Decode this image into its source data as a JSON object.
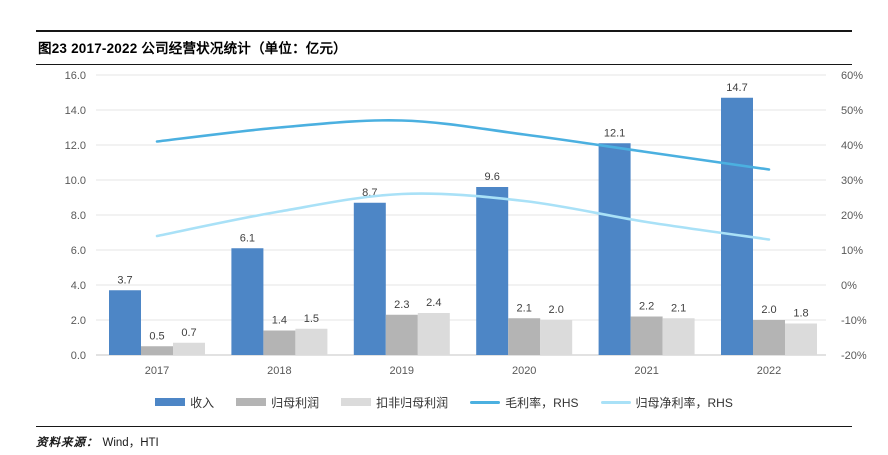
{
  "figure": {
    "title": "图23  2017-2022 公司经营状况统计（单位：亿元）",
    "source_label": "资料来源：",
    "source_value": "Wind，HTI"
  },
  "chart_data": {
    "type": "combo-bar-line",
    "categories": [
      "2017",
      "2018",
      "2019",
      "2020",
      "2021",
      "2022"
    ],
    "bar_series": [
      {
        "key": "revenue",
        "name": "收入",
        "color": "#4d86c6",
        "values": [
          3.7,
          6.1,
          8.7,
          9.6,
          12.1,
          14.7
        ],
        "axis": "left"
      },
      {
        "key": "net-profit",
        "name": "归母利润",
        "color": "#b4b4b4",
        "values": [
          0.5,
          1.4,
          2.3,
          2.1,
          2.2,
          2.0
        ],
        "axis": "left"
      },
      {
        "key": "adjusted-net-profit",
        "name": "扣非归母利润",
        "color": "#dbdbdb",
        "values": [
          0.7,
          1.5,
          2.4,
          2.0,
          2.1,
          1.8
        ],
        "axis": "left"
      }
    ],
    "line_series": [
      {
        "key": "gross-margin-rhs",
        "name": "毛利率，RHS",
        "color": "#4bb0e0",
        "values": [
          41,
          45,
          47,
          43,
          38,
          33
        ],
        "axis": "right"
      },
      {
        "key": "net-margin-rhs",
        "name": "归母净利率，RHS",
        "color": "#a9e1f7",
        "values": [
          14,
          21,
          26,
          24,
          18,
          13
        ],
        "axis": "right"
      }
    ],
    "left_axis": {
      "min": 0,
      "max": 16,
      "step": 2,
      "tick_labels": [
        "0.0",
        "2.0",
        "4.0",
        "6.0",
        "8.0",
        "10.0",
        "12.0",
        "14.0",
        "16.0"
      ]
    },
    "right_axis": {
      "min": -20,
      "max": 60,
      "step": 10,
      "suffix": "%",
      "tick_labels": [
        "-20%",
        "-10%",
        "0%",
        "10%",
        "20%",
        "30%",
        "40%",
        "50%",
        "60%"
      ]
    },
    "grid": true,
    "legend_position": "bottom"
  }
}
